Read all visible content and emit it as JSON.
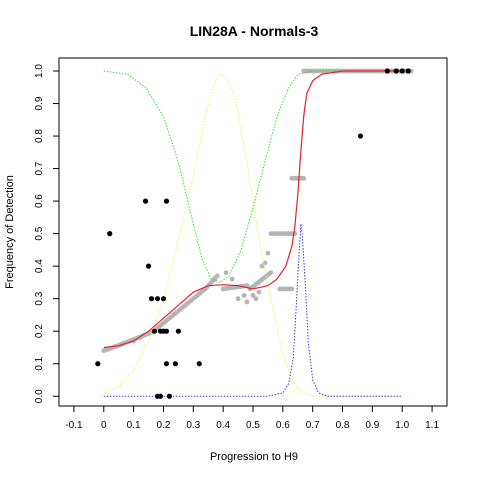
{
  "chart_data": {
    "type": "scatter",
    "title": "LIN28A - Normals-3",
    "xlabel": "Progression to H9",
    "ylabel": "Frequency of Detection",
    "xlim": [
      -0.15,
      1.15
    ],
    "ylim": [
      -0.03,
      1.04
    ],
    "xticks": [
      "-0.1",
      "0",
      "0.1",
      "0.2",
      "0.3",
      "0.4",
      "0.5",
      "0.6",
      "0.7",
      "0.8",
      "0.9",
      "1.0",
      "1.1"
    ],
    "yticks": [
      "0.0",
      "0.1",
      "0.2",
      "0.3",
      "0.4",
      "0.5",
      "0.6",
      "0.7",
      "0.8",
      "0.9",
      "1.0"
    ],
    "grid": false,
    "colors": {
      "black_points": "#000000",
      "gray_points": "#b4b4b4",
      "fit_line": "#e8202a",
      "green_curve": "#33dd33",
      "yellow_curve": "#f0f066",
      "blue_curve": "#3a3ad8"
    },
    "black_points": [
      [
        -0.02,
        0.1
      ],
      [
        0.02,
        0.5
      ],
      [
        0.14,
        0.6
      ],
      [
        0.15,
        0.4
      ],
      [
        0.16,
        0.3
      ],
      [
        0.17,
        0.2
      ],
      [
        0.18,
        0.3
      ],
      [
        0.18,
        0.0
      ],
      [
        0.19,
        0.2
      ],
      [
        0.19,
        0.0
      ],
      [
        0.2,
        0.2
      ],
      [
        0.2,
        0.3
      ],
      [
        0.21,
        0.2
      ],
      [
        0.21,
        0.6
      ],
      [
        0.21,
        0.1
      ],
      [
        0.22,
        0.0
      ],
      [
        0.24,
        0.1
      ],
      [
        0.25,
        0.2
      ],
      [
        0.32,
        0.1
      ],
      [
        0.86,
        0.8
      ],
      [
        0.95,
        1.0
      ],
      [
        0.98,
        1.0
      ],
      [
        1.0,
        1.0
      ],
      [
        1.02,
        1.0
      ]
    ],
    "gray_segments": [
      {
        "x": [
          0.0,
          0.06
        ],
        "y": [
          0.14,
          0.16
        ]
      },
      {
        "x": [
          0.06,
          0.17
        ],
        "y": [
          0.16,
          0.2
        ]
      },
      {
        "x": [
          0.18,
          0.26
        ],
        "y": [
          0.21,
          0.27
        ]
      },
      {
        "x": [
          0.26,
          0.34
        ],
        "y": [
          0.27,
          0.33
        ]
      },
      {
        "x": [
          0.34,
          0.38
        ],
        "y": [
          0.33,
          0.37
        ]
      },
      {
        "x": [
          0.4,
          0.48
        ],
        "y": [
          0.33,
          0.34
        ]
      },
      {
        "x": [
          0.49,
          0.56
        ],
        "y": [
          0.33,
          0.38
        ]
      },
      {
        "x": [
          0.56,
          0.64
        ],
        "y": [
          0.5,
          0.5
        ]
      },
      {
        "x": [
          0.59,
          0.63
        ],
        "y": [
          0.33,
          0.33
        ]
      },
      {
        "x": [
          0.63,
          0.67
        ],
        "y": [
          0.67,
          0.67
        ]
      },
      {
        "x": [
          0.67,
          1.03
        ],
        "y": [
          1.0,
          1.0
        ]
      }
    ],
    "gray_points": [
      [
        0.45,
        0.3
      ],
      [
        0.47,
        0.31
      ],
      [
        0.48,
        0.29
      ],
      [
        0.5,
        0.31
      ],
      [
        0.51,
        0.3
      ],
      [
        0.52,
        0.32
      ],
      [
        0.53,
        0.4
      ],
      [
        0.54,
        0.41
      ],
      [
        0.55,
        0.44
      ],
      [
        0.41,
        0.38
      ],
      [
        0.43,
        0.36
      ],
      [
        0.37,
        0.36
      ],
      [
        0.1,
        0.17
      ],
      [
        0.12,
        0.18
      ]
    ],
    "fit_line": [
      [
        0.0,
        0.15
      ],
      [
        0.05,
        0.155
      ],
      [
        0.1,
        0.17
      ],
      [
        0.15,
        0.2
      ],
      [
        0.2,
        0.24
      ],
      [
        0.25,
        0.28
      ],
      [
        0.3,
        0.32
      ],
      [
        0.35,
        0.34
      ],
      [
        0.4,
        0.343
      ],
      [
        0.45,
        0.34
      ],
      [
        0.5,
        0.33
      ],
      [
        0.55,
        0.34
      ],
      [
        0.58,
        0.36
      ],
      [
        0.61,
        0.4
      ],
      [
        0.63,
        0.46
      ],
      [
        0.64,
        0.52
      ],
      [
        0.65,
        0.62
      ],
      [
        0.66,
        0.75
      ],
      [
        0.67,
        0.86
      ],
      [
        0.68,
        0.93
      ],
      [
        0.7,
        0.97
      ],
      [
        0.73,
        0.99
      ],
      [
        0.8,
        1.0
      ],
      [
        1.0,
        1.0
      ]
    ],
    "green_curve": [
      [
        0.0,
        1.0
      ],
      [
        0.08,
        0.99
      ],
      [
        0.14,
        0.95
      ],
      [
        0.2,
        0.86
      ],
      [
        0.25,
        0.72
      ],
      [
        0.3,
        0.53
      ],
      [
        0.33,
        0.42
      ],
      [
        0.36,
        0.36
      ],
      [
        0.39,
        0.35
      ],
      [
        0.42,
        0.37
      ],
      [
        0.46,
        0.45
      ],
      [
        0.5,
        0.58
      ],
      [
        0.54,
        0.72
      ],
      [
        0.58,
        0.86
      ],
      [
        0.62,
        0.95
      ],
      [
        0.65,
        0.99
      ],
      [
        0.7,
        1.0
      ],
      [
        1.0,
        1.0
      ]
    ],
    "yellow_curve": [
      [
        0.0,
        0.01
      ],
      [
        0.05,
        0.03
      ],
      [
        0.1,
        0.08
      ],
      [
        0.15,
        0.17
      ],
      [
        0.2,
        0.29
      ],
      [
        0.25,
        0.48
      ],
      [
        0.3,
        0.68
      ],
      [
        0.34,
        0.86
      ],
      [
        0.37,
        0.96
      ],
      [
        0.39,
        0.99
      ],
      [
        0.41,
        0.98
      ],
      [
        0.44,
        0.92
      ],
      [
        0.48,
        0.72
      ],
      [
        0.52,
        0.48
      ],
      [
        0.56,
        0.3
      ],
      [
        0.6,
        0.13
      ],
      [
        0.63,
        0.05
      ],
      [
        0.66,
        0.015
      ],
      [
        0.7,
        0.0
      ],
      [
        1.0,
        0.0
      ]
    ],
    "blue_curve": [
      [
        0.0,
        0.0
      ],
      [
        0.55,
        0.0
      ],
      [
        0.6,
        0.01
      ],
      [
        0.62,
        0.04
      ],
      [
        0.635,
        0.12
      ],
      [
        0.645,
        0.28
      ],
      [
        0.655,
        0.45
      ],
      [
        0.66,
        0.53
      ],
      [
        0.665,
        0.5
      ],
      [
        0.675,
        0.35
      ],
      [
        0.685,
        0.17
      ],
      [
        0.7,
        0.05
      ],
      [
        0.72,
        0.01
      ],
      [
        0.75,
        0.0
      ],
      [
        1.0,
        0.0
      ]
    ]
  }
}
